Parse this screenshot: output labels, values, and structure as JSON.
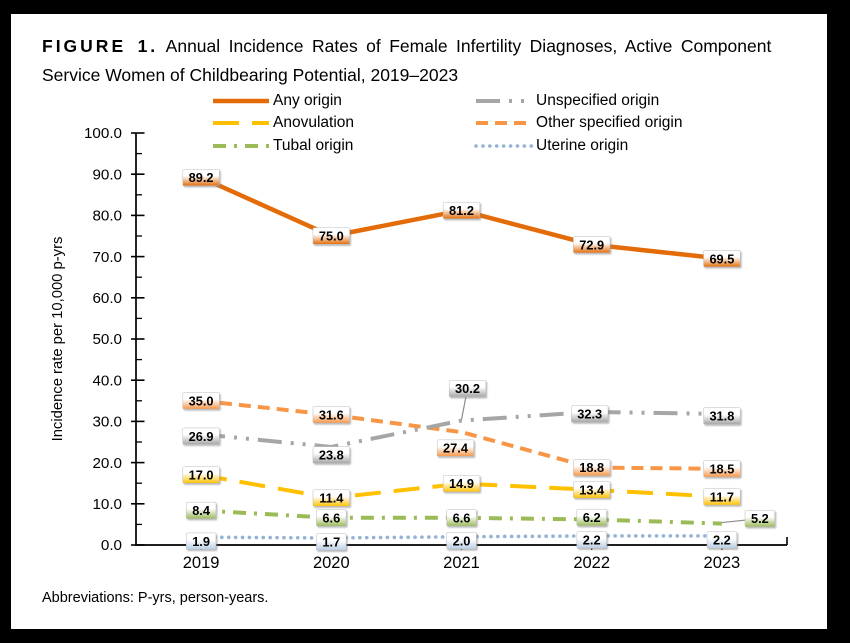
{
  "figure": {
    "title_prefix": "FIGURE 1.",
    "title_line1": "Annual Incidence Rates of Female Infertility Diagnoses, Active Component",
    "title_line2": "Service Women of Childbearing Potential, 2019–2023",
    "footnote": "Abbreviations: P-yrs, person-years.",
    "frame_color": "#000000",
    "background_color": "#ffffff"
  },
  "chart_data": {
    "type": "line",
    "title": "Annual Incidence Rates of Female Infertility Diagnoses, Active Component Service Women of Childbearing Potential, 2019–2023",
    "x": [
      "2019",
      "2020",
      "2021",
      "2022",
      "2023"
    ],
    "xlabel": "",
    "ylabel": "Incidence rate per 10,000 p-yrs",
    "ylim": [
      0.0,
      100.0
    ],
    "ytick_step": 10,
    "ytick_minor_step": 5,
    "ytick_decimals": 1,
    "grid": false,
    "legend_position": "top",
    "legend_columns": [
      [
        "Any origin",
        "Anovulation",
        "Tubal origin"
      ],
      [
        "Unspecified origin",
        "Other specified origin",
        "Uterine origin"
      ]
    ],
    "series": [
      {
        "name": "Any origin",
        "color": "#E36C09",
        "values": [
          89.2,
          75.0,
          81.2,
          72.9,
          69.5
        ],
        "dash": "solid",
        "width": 4.5,
        "label_box_color": "#E36C09"
      },
      {
        "name": "Anovulation",
        "color": "#FFC000",
        "values": [
          17.0,
          11.4,
          14.9,
          13.4,
          11.7
        ],
        "dash": "26 13",
        "width": 4,
        "label_box_color": "#FFC000"
      },
      {
        "name": "Tubal origin",
        "color": "#9BBB59",
        "values": [
          8.4,
          6.6,
          6.6,
          6.2,
          5.2
        ],
        "dash": "13 8 3 8",
        "width": 4,
        "label_box_color": "#9BBB59"
      },
      {
        "name": "Unspecified origin",
        "color": "#A6A6A6",
        "values": [
          26.9,
          23.8,
          30.2,
          32.3,
          31.8
        ],
        "dash": "24 9 3 9 3 9",
        "width": 4,
        "label_box_color": "#A6A6A6"
      },
      {
        "name": "Other specified origin",
        "color": "#F79646",
        "values": [
          35.0,
          31.6,
          27.4,
          18.8,
          18.5
        ],
        "dash": "12 7",
        "width": 4,
        "label_box_color": "#F79646"
      },
      {
        "name": "Uterine origin",
        "color": "#95B3D7",
        "values": [
          1.9,
          1.7,
          2.0,
          2.2,
          2.2
        ],
        "dash": "dots",
        "width": 3.6,
        "label_box_color": "#B9CDE5"
      }
    ],
    "layout": {
      "draw_order": [
        0,
        1,
        2,
        4,
        3,
        5
      ],
      "label_offsets": {
        "0": [
          [
            0,
            0
          ],
          [
            0,
            0
          ],
          [
            0,
            0
          ],
          [
            0,
            0
          ],
          [
            0,
            0
          ]
        ],
        "1": [
          [
            0,
            0
          ],
          [
            0,
            0
          ],
          [
            0,
            0
          ],
          [
            0,
            0
          ],
          [
            0,
            0
          ]
        ],
        "2": [
          [
            0,
            0
          ],
          [
            0,
            0
          ],
          [
            0,
            0
          ],
          [
            0,
            -2
          ],
          [
            38,
            -5
          ]
        ],
        "3": [
          [
            0,
            2
          ],
          [
            0,
            8
          ],
          [
            6,
            -32
          ],
          [
            -2,
            2
          ],
          [
            0,
            2
          ]
        ],
        "4": [
          [
            0,
            0
          ],
          [
            0,
            0
          ],
          [
            -6,
            16
          ],
          [
            0,
            0
          ],
          [
            0,
            0
          ]
        ],
        "5": [
          [
            0,
            4
          ],
          [
            0,
            4
          ],
          [
            0,
            4
          ],
          [
            0,
            4
          ],
          [
            0,
            4
          ]
        ]
      },
      "leader_points": [
        [
          2,
          4
        ],
        [
          3,
          2
        ]
      ]
    }
  }
}
